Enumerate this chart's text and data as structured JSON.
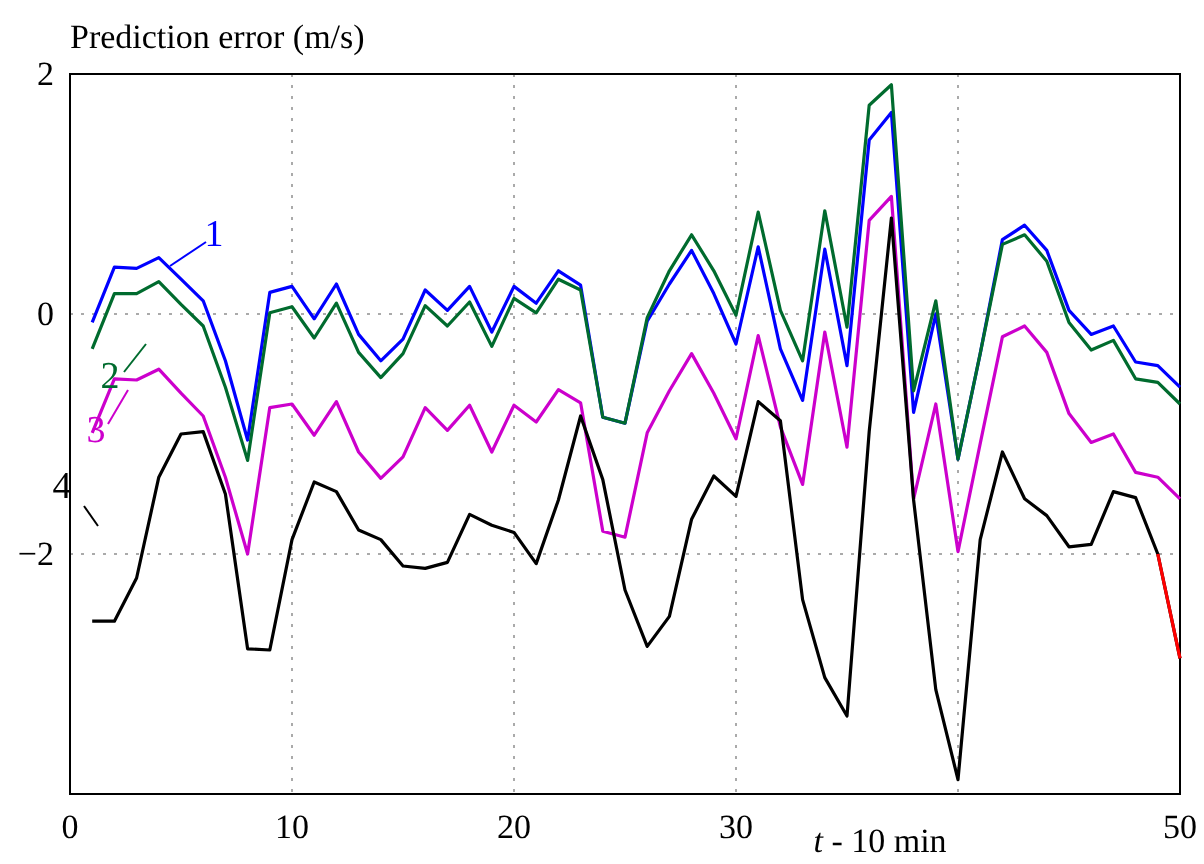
{
  "chart_data": {
    "type": "line",
    "ylabel": "Prediction error (m/s)",
    "xlabel": "t - 10 min",
    "x": [
      1,
      2,
      3,
      4,
      5,
      6,
      7,
      8,
      9,
      10,
      11,
      12,
      13,
      14,
      15,
      16,
      17,
      18,
      19,
      20,
      21,
      22,
      23,
      24,
      25,
      26,
      27,
      28,
      29,
      30,
      31,
      32,
      33,
      34,
      35,
      36,
      37,
      38,
      39,
      40,
      41,
      42,
      43,
      44,
      45,
      46,
      47,
      48,
      49,
      50
    ],
    "xlim": [
      0,
      50
    ],
    "xticks": [
      0,
      10,
      20,
      30,
      {
        "value": 40,
        "label": null
      },
      50
    ],
    "ylim": [
      -4,
      2
    ],
    "yticks": [
      -2,
      0,
      2
    ],
    "grid": true,
    "legend": "left",
    "line_style": "solid",
    "series": [
      {
        "name": "1",
        "color": "#0000ff",
        "values": [
          -0.07,
          0.39,
          0.38,
          0.47,
          0.29,
          0.11,
          -0.39,
          -1.05,
          0.18,
          0.23,
          -0.04,
          0.25,
          -0.17,
          -0.39,
          -0.21,
          0.2,
          0.03,
          0.23,
          -0.15,
          0.23,
          0.09,
          0.36,
          0.24,
          -0.86,
          -0.91,
          -0.06,
          0.25,
          0.53,
          0.17,
          -0.25,
          0.56,
          -0.29,
          -0.72,
          0.54,
          -0.43,
          1.45,
          1.68,
          -0.82,
          0,
          -1.21,
          -0.33,
          0.62,
          0.74,
          0.53,
          0.03,
          -0.17,
          -0.1,
          -0.4,
          -0.43,
          -0.61
        ]
      },
      {
        "name": "2",
        "color": "#006b2e",
        "values": [
          -0.29,
          0.17,
          0.17,
          0.27,
          0.08,
          -0.1,
          -0.61,
          -1.22,
          0.01,
          0.06,
          -0.2,
          0.09,
          -0.32,
          -0.53,
          -0.33,
          0.07,
          -0.1,
          0.1,
          -0.27,
          0.13,
          0.01,
          0.29,
          0.2,
          -0.86,
          -0.91,
          -0.03,
          0.36,
          0.66,
          0.36,
          -0.01,
          0.85,
          0.03,
          -0.39,
          0.86,
          -0.11,
          1.74,
          1.91,
          -0.64,
          0.11,
          -1.21,
          -0.33,
          0.58,
          0.66,
          0.44,
          -0.07,
          -0.3,
          -0.22,
          -0.54,
          -0.57,
          -0.75
        ]
      },
      {
        "name": "3",
        "color": "#cc00cc",
        "values": [
          -0.99,
          -0.54,
          -0.55,
          -0.46,
          -0.66,
          -0.85,
          -1.36,
          -2.0,
          -0.78,
          -0.75,
          -1.01,
          -0.73,
          -1.15,
          -1.37,
          -1.19,
          -0.78,
          -0.97,
          -0.76,
          -1.15,
          -0.76,
          -0.9,
          -0.63,
          -0.74,
          -1.81,
          -1.86,
          -0.99,
          -0.64,
          -0.33,
          -0.66,
          -1.04,
          -0.18,
          -0.94,
          -1.42,
          -0.15,
          -1.11,
          0.78,
          0.98,
          -1.54,
          -0.75,
          -1.98,
          -1.08,
          -0.19,
          -0.1,
          -0.32,
          -0.83,
          -1.07,
          -1.0,
          -1.32,
          -1.36,
          -1.54
        ]
      },
      {
        "name": "4",
        "color": "#000000",
        "values": [
          -2.56,
          -2.56,
          -2.2,
          -1.36,
          -1.0,
          -0.98,
          -1.5,
          -2.79,
          -2.8,
          -1.88,
          -1.4,
          -1.48,
          -1.8,
          -1.88,
          -2.1,
          -2.12,
          -2.07,
          -1.67,
          -1.76,
          -1.82,
          -2.08,
          -1.55,
          -0.85,
          -1.38,
          -2.3,
          -2.77,
          -2.52,
          -1.71,
          -1.35,
          -1.52,
          -0.73,
          -0.89,
          -2.38,
          -3.03,
          -3.35,
          -0.98,
          0.8,
          -1.55,
          -3.13,
          -3.88,
          -1.88,
          -1.15,
          -1.54,
          -1.68,
          -1.94,
          -1.92,
          -1.48,
          -1.53,
          -2.0,
          -2.87
        ]
      },
      {
        "color": "#ff0000",
        "x": [
          49,
          50
        ],
        "values": [
          -2.0,
          -2.87
        ]
      }
    ]
  }
}
